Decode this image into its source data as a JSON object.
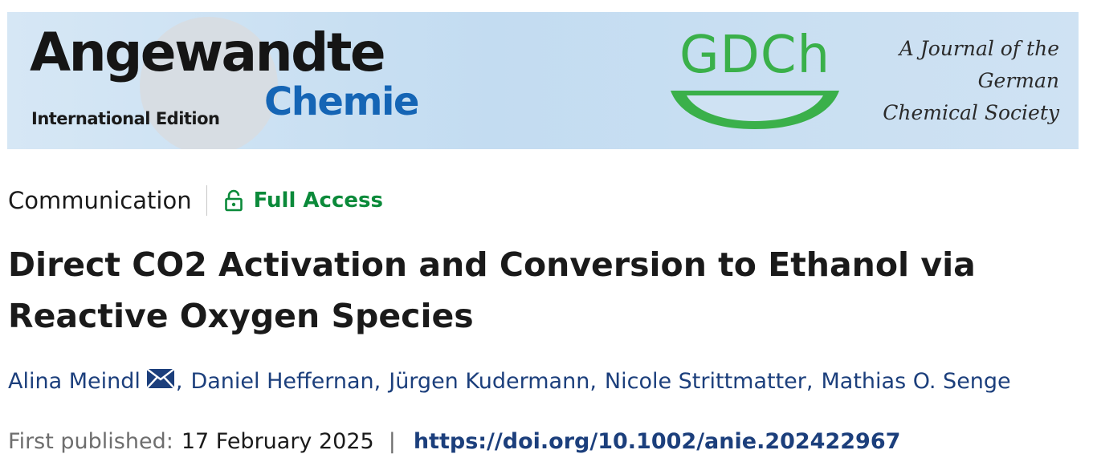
{
  "banner": {
    "journal_name": "Angewandte",
    "edition": "International Edition",
    "journal_sub": "Chemie",
    "society_logo": "GDCh",
    "tagline": [
      "A Journal of the",
      "German",
      "Chemical Society"
    ]
  },
  "article": {
    "type": "Communication",
    "access": "Full Access",
    "title": "Direct CO2 Activation and Conversion to Ethanol via Reactive Oxygen Species",
    "authors": [
      {
        "name": "Alina Meindl",
        "corresponding": true
      },
      {
        "name": "Daniel Heffernan"
      },
      {
        "name": "Jürgen Kudermann"
      },
      {
        "name": "Nicole Strittmatter"
      },
      {
        "name": "Mathias O. Senge"
      }
    ],
    "published_label": "First published:",
    "published_date": "17 February 2025",
    "separator": "|",
    "doi": "https://doi.org/10.1002/anie.202422967"
  },
  "icons": {
    "access": "open-lock-icon",
    "email": "envelope-icon"
  },
  "colors": {
    "access_green": "#0b8a3a",
    "link_blue": "#1c3f7c",
    "chemie_blue": "#1565b5",
    "gdch_green": "#3ab04a"
  }
}
